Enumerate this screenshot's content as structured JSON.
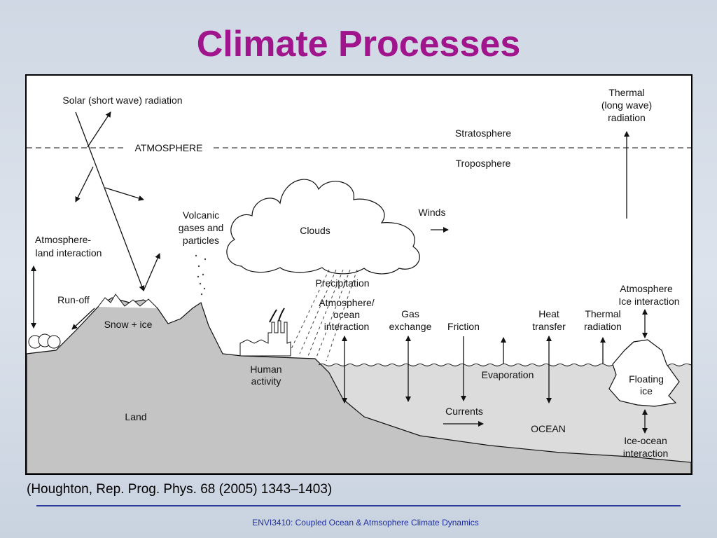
{
  "title": "Climate Processes",
  "diagram": {
    "solar_radiation": "Solar (short wave) radiation",
    "atmosphere": "ATMOSPHERE",
    "stratosphere": "Stratosphere",
    "troposphere": "Troposphere",
    "thermal_long_wave": [
      "Thermal",
      "(long wave)",
      "radiation"
    ],
    "winds": "Winds",
    "clouds": "Clouds",
    "volcanic": [
      "Volcanic",
      "gases and",
      "particles"
    ],
    "atmosphere_land": [
      "Atmosphere-",
      "land interaction"
    ],
    "run_off": "Run-off",
    "snow_ice": "Snow + ice",
    "precipitation": "Precipitation",
    "atmosphere_ocean": [
      "Atmosphere/",
      "ocean",
      "interaction"
    ],
    "gas_exchange": [
      "Gas",
      "exchange"
    ],
    "friction": "Friction",
    "heat_transfer": [
      "Heat",
      "transfer"
    ],
    "thermal_radiation": [
      "Thermal",
      "radiation"
    ],
    "atmosphere_ice": [
      "Atmosphere",
      "Ice interaction"
    ],
    "human_activity": [
      "Human",
      "activity"
    ],
    "evaporation": "Evaporation",
    "floating_ice": [
      "Floating",
      "ice"
    ],
    "currents": "Currents",
    "ocean": "OCEAN",
    "land": "Land",
    "ice_ocean": [
      "Ice-ocean",
      "interaction"
    ]
  },
  "citation": "(Houghton, Rep. Prog. Phys. 68 (2005) 1343–1403)",
  "footer": "ENVI3410: Coupled Ocean & Atmsophere Climate Dynamics"
}
